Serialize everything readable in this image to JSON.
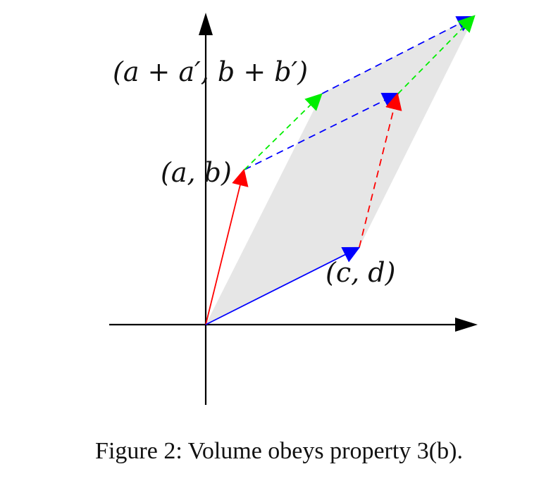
{
  "labels": {
    "sum_point": "(a + a′, b + b′)",
    "point_ab": "(a, b)",
    "point_cd": "(c, d)"
  },
  "caption": "Figure 2: Volume obeys property 3(b).",
  "colors": {
    "red": "#ff0000",
    "blue": "#0000ff",
    "green": "#00ee00",
    "shade": "#e6e6e6",
    "axis": "#000000"
  }
}
